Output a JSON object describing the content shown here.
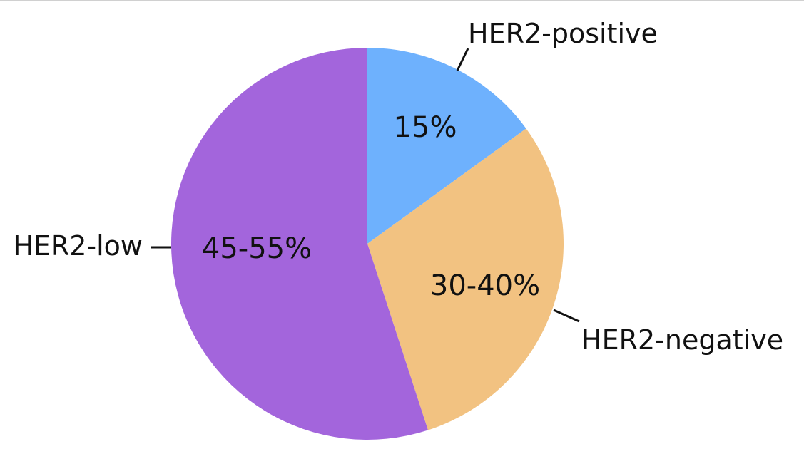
{
  "chart_data": {
    "type": "pie",
    "start_angle": "12 o'clock",
    "direction": "clockwise",
    "slices": [
      {
        "label": "HER2-positive",
        "value": 15,
        "value_label": "15%",
        "color": "#6eb1fd"
      },
      {
        "label": "HER2-negative",
        "value": 30,
        "value_label": "30-40%",
        "color": "#f2c281"
      },
      {
        "label": "HER2-low",
        "value": 55,
        "value_label": "45-55%",
        "color": "#a365dc"
      }
    ]
  }
}
